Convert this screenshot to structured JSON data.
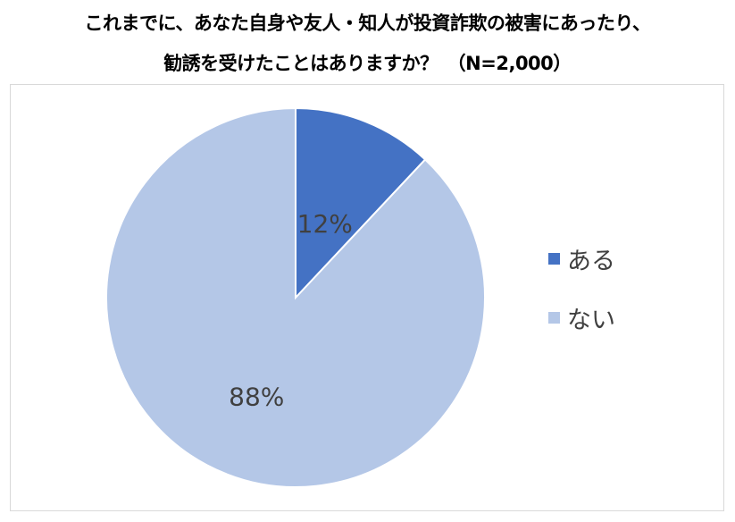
{
  "chart_data": {
    "type": "pie",
    "title_lines": [
      "これまでに、あなた自身や友人・知人が投資詐欺の被害にあったり、",
      "勧誘を受けたことはありますか？　（N=2,000）"
    ],
    "categories": [
      "ある",
      "ない"
    ],
    "values": [
      12,
      88
    ],
    "data_labels": [
      "12%",
      "88%"
    ],
    "colors": [
      "#4472C4",
      "#B4C7E7"
    ],
    "start_angle": "12 o'clock, clockwise",
    "legend_position": "right"
  }
}
